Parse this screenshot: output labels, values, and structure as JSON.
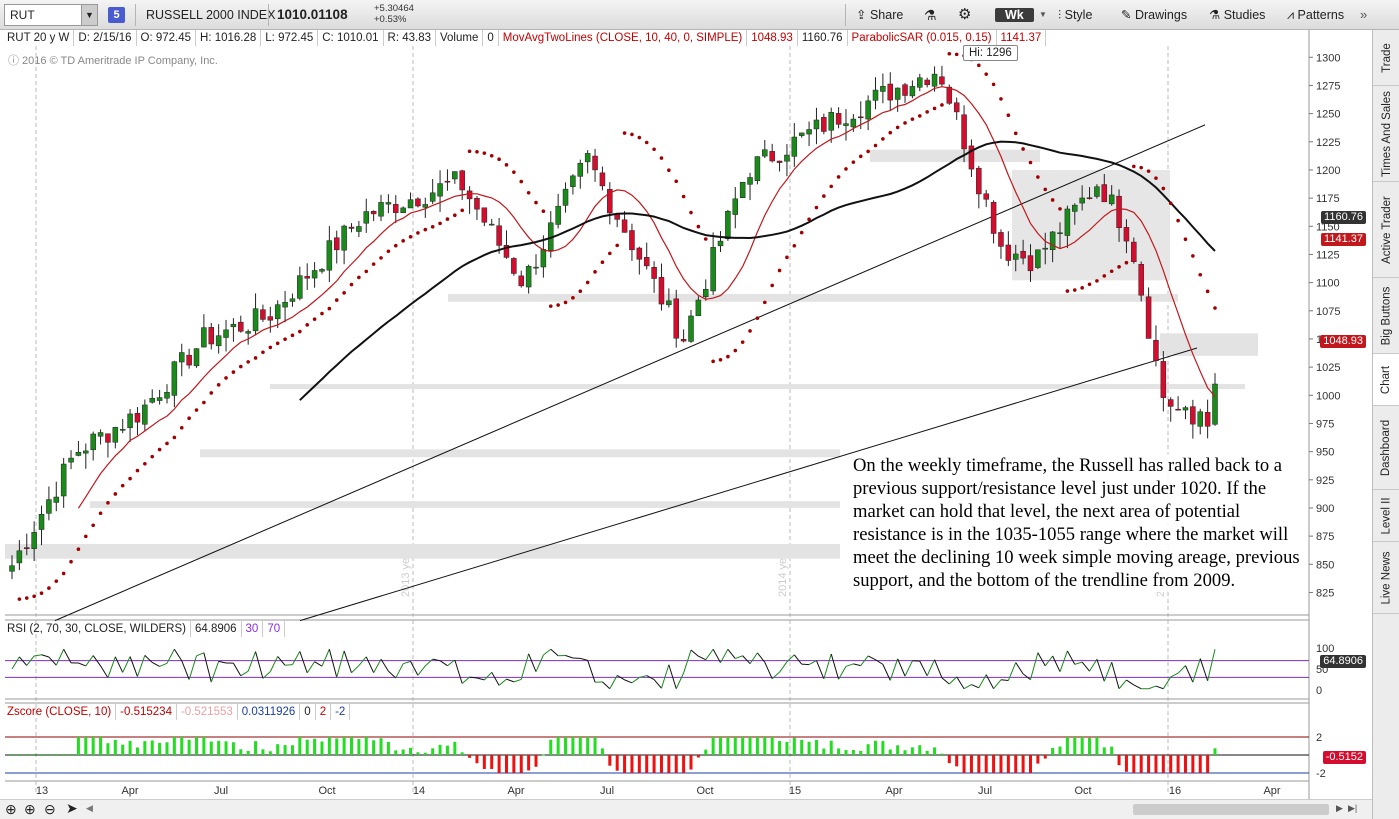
{
  "toolbar": {
    "symbol": "RUT",
    "badge": "5",
    "index_name": "RUSSELL 2000 INDEX",
    "last": "1010.01108",
    "change": "+5.30464",
    "change_pct": "+0.53%",
    "share": "Share",
    "timeframe": "Wk",
    "style": "Style",
    "drawings": "Drawings",
    "studies": "Studies",
    "patterns": "Patterns"
  },
  "infobar": {
    "period": "RUT 20 y W",
    "date": "D: 2/15/16",
    "open": "O: 972.45",
    "high": "H: 1016.28",
    "low": "L: 972.45",
    "close": "C: 1010.01",
    "range": "R: 43.83",
    "volume_label": "Volume",
    "volume": "0",
    "ma_study": "MovAvgTwoLines (CLOSE, 10, 40, 0, SIMPLE)",
    "ma1": "1048.93",
    "ma2": "1160.76",
    "sar_study": "ParabolicSAR (0.015, 0.15)",
    "sar": "1141.37"
  },
  "copyright": "ⓘ 2016 © TD Ameritrade IP Company, Inc.",
  "hi_label": "Hi: 1296",
  "annotation": "On the weekly timeframe, the Russell has ralled back to a previous support/resistance level just under 1020.  If the market can hold that level, the next area of potential resistance is in the 1035-1055 range where the market will meet the declining 10 week simple moving areage, previous support, and the bottom of the trendline from 2009.",
  "price_labels": {
    "ma40": "1160.76",
    "sar": "1141.37",
    "ma10": "1048.93",
    "rsi": "64.8906",
    "zscore": "-0.5152"
  },
  "rsi_header": {
    "study": "RSI (2, 70, 30, CLOSE, WILDERS)",
    "value": "64.8906",
    "oversold": "30",
    "overbought": "70"
  },
  "zscore_header": {
    "study": "Zscore (CLOSE, 10)",
    "value": "-0.515234",
    "value2": "-0.521553",
    "value3": "0.0311926",
    "zero": "0",
    "upper": "2",
    "lower": "-2"
  },
  "year_watermarks": [
    "2013 year",
    "2014 year",
    "2015 year"
  ],
  "sidebar_tabs": [
    "Trade",
    "Times And Sales",
    "Active Trader",
    "Big Buttons",
    "Chart",
    "Dashboard",
    "Level II",
    "Live News"
  ],
  "colors": {
    "up": "#1a8a1a",
    "down": "#d40d2e",
    "sar": "#a00000",
    "ma10": "#c0181c",
    "ma40": "#111111",
    "rsi_line": "#7b2fbf",
    "zscore_up": "#22dd22",
    "zscore_down": "#ee1111"
  },
  "chart_data": {
    "type": "candlestick",
    "title": "RUSSELL 2000 INDEX",
    "x_tick_labels": [
      "13",
      "Apr",
      "Jul",
      "Oct",
      "14",
      "Apr",
      "Jul",
      "Oct",
      "15",
      "Apr",
      "Jul",
      "Oct",
      "16",
      "Apr"
    ],
    "y_ticks": [
      825,
      850,
      875,
      900,
      925,
      950,
      975,
      1000,
      1025,
      1050,
      1075,
      1100,
      1125,
      1150,
      1175,
      1200,
      1225,
      1250,
      1275,
      1300
    ],
    "ylim": [
      805,
      1310
    ],
    "price_anchors": [
      {
        "date": "2013-01",
        "close": 849
      },
      {
        "date": "2013-03",
        "close": 950
      },
      {
        "date": "2013-05",
        "close": 985
      },
      {
        "date": "2013-07",
        "close": 1050
      },
      {
        "date": "2013-09",
        "close": 1070
      },
      {
        "date": "2013-12",
        "close": 1160
      },
      {
        "date": "2014-03",
        "close": 1190
      },
      {
        "date": "2014-05",
        "close": 1100
      },
      {
        "date": "2014-07",
        "close": 1210
      },
      {
        "date": "2014-10",
        "close": 1050
      },
      {
        "date": "2014-12",
        "close": 1200
      },
      {
        "date": "2015-03",
        "close": 1250
      },
      {
        "date": "2015-06",
        "close": 1290
      },
      {
        "date": "2015-08",
        "close": 1130
      },
      {
        "date": "2015-09",
        "close": 1120
      },
      {
        "date": "2015-11",
        "close": 1190
      },
      {
        "date": "2015-12",
        "close": 1140
      },
      {
        "date": "2016-01",
        "close": 1000
      },
      {
        "date": "2016-02",
        "close": 972.45
      },
      {
        "date": "2016-02-15",
        "close": 1010.01
      }
    ],
    "annotations": [
      {
        "text": "Hi: 1296",
        "value": 1296
      }
    ],
    "support_zones": [
      {
        "from": 1035,
        "to": 1055
      },
      {
        "from": 1008,
        "to": 1010
      },
      {
        "from": 1083,
        "to": 1090
      },
      {
        "from": 1207,
        "to": 1218
      },
      {
        "from": 945,
        "to": 952
      },
      {
        "from": 900,
        "to": 906
      },
      {
        "from": 855,
        "to": 868
      }
    ],
    "studies": [
      "MovAvgTwoLines (CLOSE, 10, 40, 0, SIMPLE)",
      "ParabolicSAR (0.015, 0.15)",
      "RSI (2, 70, 30, CLOSE, WILDERS)",
      "Zscore (CLOSE, 10)"
    ]
  }
}
